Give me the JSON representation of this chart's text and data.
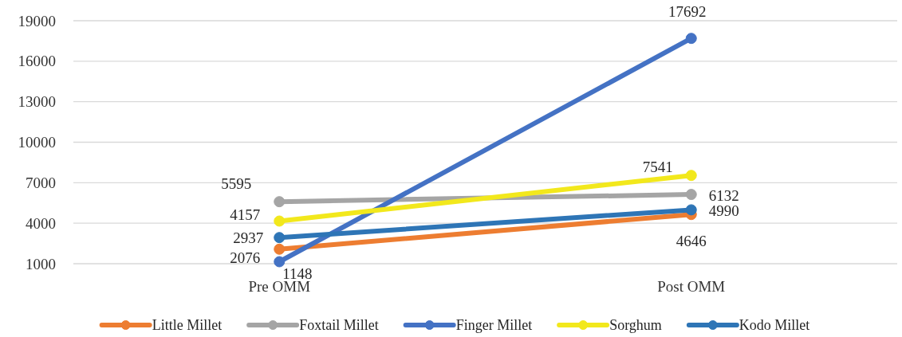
{
  "chart_data": {
    "type": "line",
    "categories": [
      "Pre OMM",
      "Post OMM"
    ],
    "series": [
      {
        "name": "Little Millet",
        "color": "#ed7d31",
        "values": [
          2076,
          4646
        ]
      },
      {
        "name": "Foxtail Millet",
        "color": "#a5a5a5",
        "values": [
          5595,
          6132
        ]
      },
      {
        "name": "Finger Millet",
        "color": "#4472c4",
        "values": [
          1148,
          17692
        ]
      },
      {
        "name": "Sorghum",
        "color": "#f2e81c",
        "values": [
          4157,
          7541
        ]
      },
      {
        "name": "Kodo Millet",
        "color": "#2e75b6",
        "values": [
          2937,
          4990
        ]
      }
    ],
    "ylim": [
      1000,
      19000
    ],
    "yticks": [
      1000,
      4000,
      7000,
      10000,
      13000,
      16000,
      19000
    ],
    "grid": "y",
    "legend": "bottom",
    "marker": "circle",
    "data_labels": true
  }
}
